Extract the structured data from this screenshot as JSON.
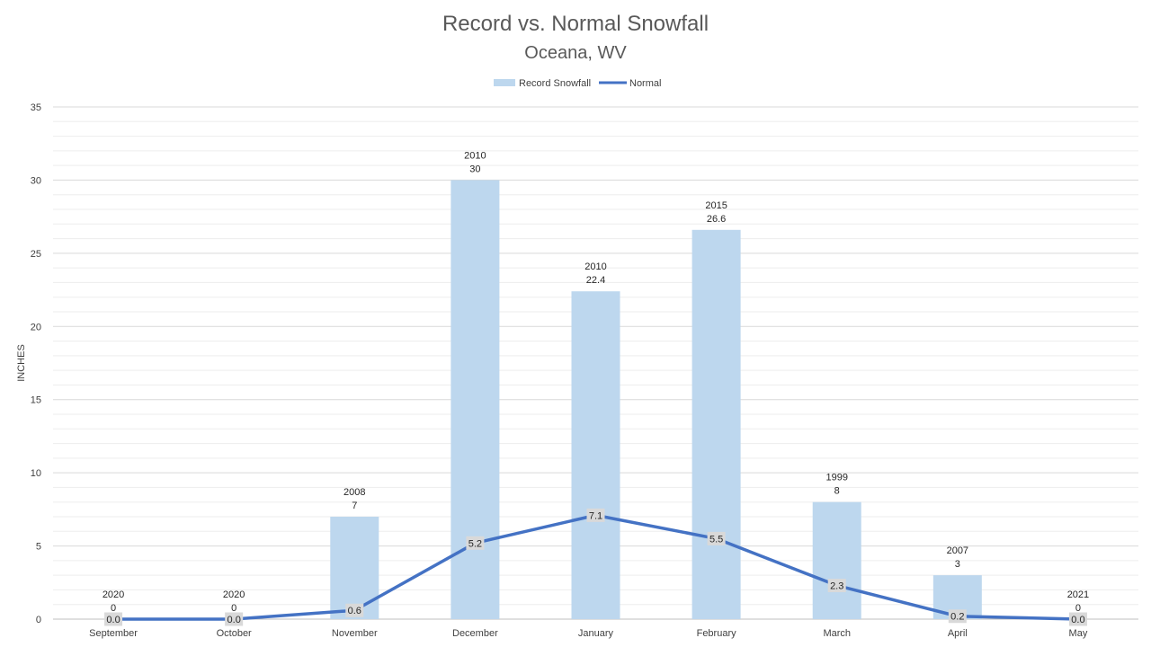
{
  "chart_data": {
    "type": "bar",
    "title": "Record vs. Normal Snowfall",
    "subtitle": "Oceana, WV",
    "ylabel": "INCHES",
    "xlabel": "",
    "categories": [
      "September",
      "October",
      "November",
      "December",
      "January",
      "February",
      "March",
      "April",
      "May"
    ],
    "ylim": [
      0,
      35
    ],
    "yticks": [
      0,
      5,
      10,
      15,
      20,
      25,
      30,
      35
    ],
    "legend_position": "top-center",
    "grid": true,
    "series": [
      {
        "name": "Record Snowfall",
        "type": "bar",
        "color": "#BDD7EE",
        "values": [
          0,
          0,
          7,
          30,
          22.4,
          26.6,
          8,
          3,
          0
        ],
        "years": [
          "2020",
          "2020",
          "2008",
          "2010",
          "2010",
          "2015",
          "1999",
          "2007",
          "2021"
        ],
        "value_labels": [
          "0",
          "0",
          "7",
          "30",
          "22.4",
          "26.6",
          "8",
          "3",
          "0"
        ]
      },
      {
        "name": "Normal",
        "type": "line",
        "color": "#4472C4",
        "values": [
          0.0,
          0.0,
          0.6,
          5.2,
          7.1,
          5.5,
          2.3,
          0.2,
          0.0
        ],
        "value_labels": [
          "0.0",
          "0.0",
          "0.6",
          "5.2",
          "7.1",
          "5.5",
          "2.3",
          "0.2",
          "0.0"
        ]
      }
    ]
  }
}
